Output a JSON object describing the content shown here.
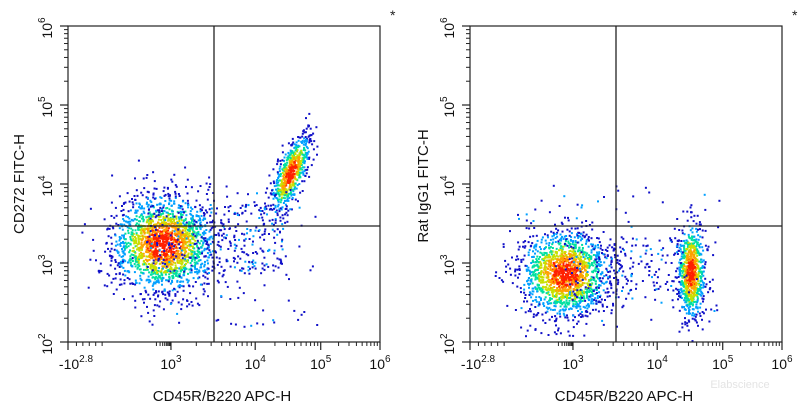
{
  "chart_data": [
    {
      "type": "scatter",
      "style": "flow-cytometry density dot plot",
      "xlabel": "CD45R/B220 APC-H",
      "ylabel": "CD272 FITC-H",
      "x_scale": "biexponential",
      "y_scale": "log",
      "x_ticks": [
        "-10^2.8",
        "10^3",
        "10^4",
        "10^5",
        "10^6"
      ],
      "y_ticks": [
        "10^2",
        "10^3",
        "10^4",
        "10^5",
        "10^6"
      ],
      "xlim": [
        -631,
        1000000
      ],
      "ylim": [
        100,
        1000000
      ],
      "gate_lines": {
        "x": 3200,
        "y": 3100
      },
      "annotation": "*",
      "colormap": [
        "#1010c8",
        "#00a0ff",
        "#00e0a0",
        "#c8e000",
        "#ffa000",
        "#ff2000"
      ],
      "populations": [
        {
          "center_x": 400,
          "center_y": 1800,
          "relative_size": 0.72,
          "peak_level": "red"
        },
        {
          "center_x": 34000,
          "center_y": 14000,
          "relative_size": 0.25,
          "peak_level": "red"
        }
      ]
    },
    {
      "type": "scatter",
      "style": "flow-cytometry density dot plot",
      "xlabel": "CD45R/B220 APC-H",
      "ylabel": "Rat IgG1 FITC-H",
      "x_scale": "biexponential",
      "y_scale": "log",
      "x_ticks": [
        "-10^2.8",
        "10^3",
        "10^4",
        "10^5",
        "10^6"
      ],
      "y_ticks": [
        "10^2",
        "10^3",
        "10^4",
        "10^5",
        "10^6"
      ],
      "xlim": [
        -631,
        1000000
      ],
      "ylim": [
        100,
        1000000
      ],
      "gate_lines": {
        "x": 3200,
        "y": 3100
      },
      "annotation": "*",
      "colormap": [
        "#1010c8",
        "#00a0ff",
        "#00e0a0",
        "#c8e000",
        "#ffa000",
        "#ff2000"
      ],
      "populations": [
        {
          "center_x": 380,
          "center_y": 750,
          "relative_size": 0.6,
          "peak_level": "red"
        },
        {
          "center_x": 32000,
          "center_y": 800,
          "relative_size": 0.3,
          "peak_level": "red"
        }
      ]
    }
  ],
  "watermark": "Elabscience"
}
